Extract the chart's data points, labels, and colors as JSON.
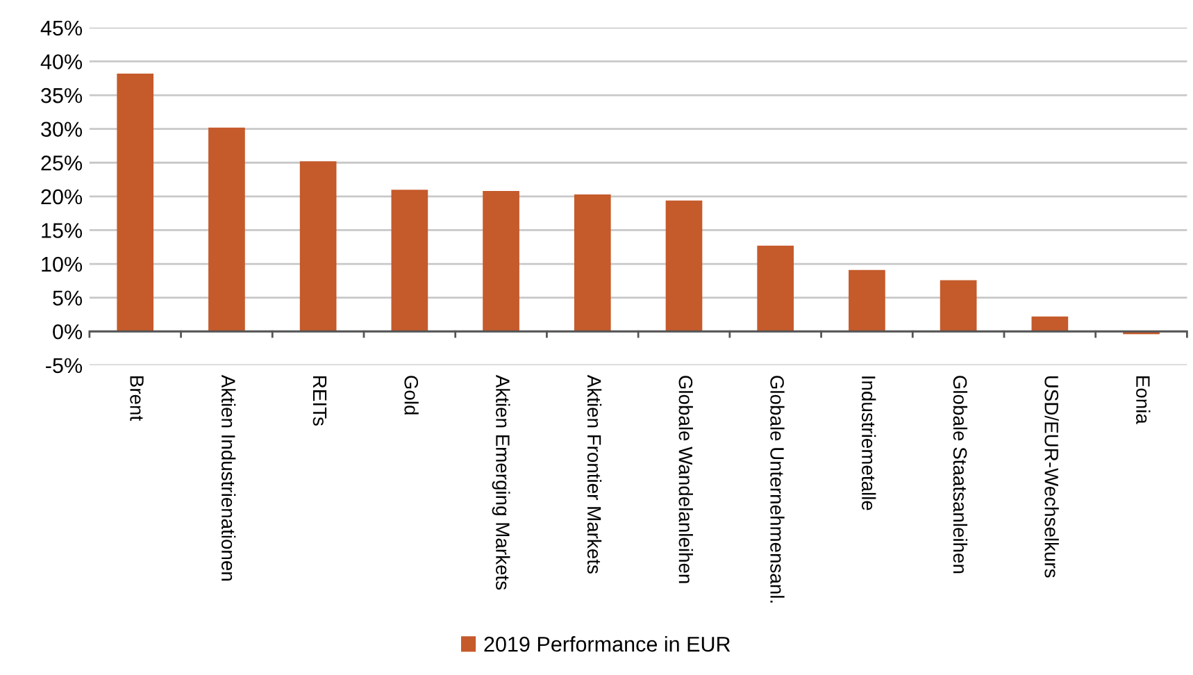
{
  "chart_data": {
    "type": "bar",
    "categories": [
      "Brent",
      "Aktien Industrienationen",
      "REITs",
      "Gold",
      "Aktien Emerging Markets",
      "Aktien Frontier Markets",
      "Globale Wandelanleihen",
      "Globale Unternehmensanl.",
      "Industriemetalle",
      "Globale Staatsanleihen",
      "USD/EUR-Wechselkurs",
      "Eonia"
    ],
    "series": [
      {
        "name": "2019 Performance in EUR",
        "color": "#c55a2b",
        "values": [
          38.2,
          30.2,
          25.2,
          21.0,
          20.8,
          20.3,
          19.4,
          12.7,
          9.1,
          7.6,
          2.2,
          -0.4
        ]
      }
    ],
    "ylim": [
      -5,
      45
    ],
    "yticks": [
      {
        "value": -5,
        "label": "-5%"
      },
      {
        "value": 0,
        "label": "0%"
      },
      {
        "value": 5,
        "label": "5%"
      },
      {
        "value": 10,
        "label": "10%"
      },
      {
        "value": 15,
        "label": "15%"
      },
      {
        "value": 20,
        "label": "20%"
      },
      {
        "value": 25,
        "label": "25%"
      },
      {
        "value": 30,
        "label": "30%"
      },
      {
        "value": 35,
        "label": "35%"
      },
      {
        "value": 40,
        "label": "40%"
      },
      {
        "value": 45,
        "label": "45%"
      }
    ],
    "grid": "y",
    "legend": "bottom"
  }
}
